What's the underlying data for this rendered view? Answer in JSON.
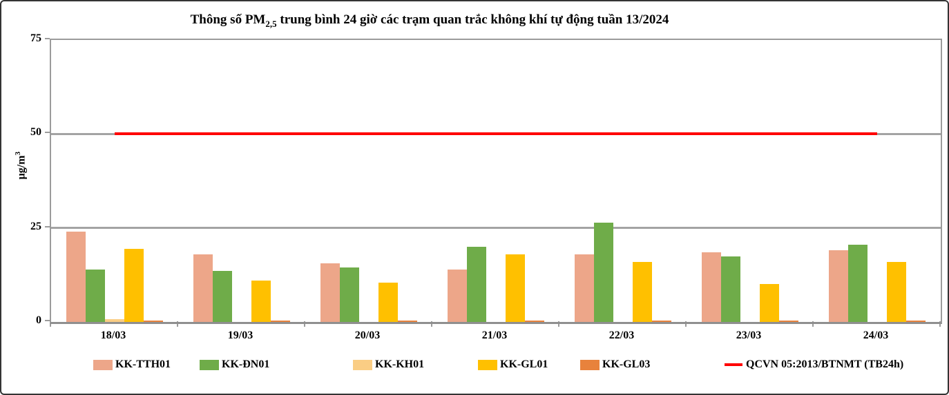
{
  "title": {
    "prefix": "Thông số PM",
    "subscript": "2,5",
    "suffix": " trung bình 24 giờ các trạm quan trắc không khí tự động tuần 13/2024"
  },
  "y_axis": {
    "label_prefix": "µg/m",
    "label_sup": "3"
  },
  "chart_data": {
    "type": "bar",
    "title": "Thông số PM2,5 trung bình 24 giờ các trạm quan trắc không khí tự động tuần 13/2024",
    "xlabel": "",
    "ylabel": "µg/m3",
    "ylim": [
      0,
      75
    ],
    "yticks": [
      0,
      25,
      50,
      75
    ],
    "grid": true,
    "legend_position": "bottom",
    "categories": [
      "18/03",
      "19/03",
      "20/03",
      "21/03",
      "22/03",
      "23/03",
      "24/03"
    ],
    "series": [
      {
        "name": "KK-TTH01",
        "color": "#eda689",
        "values": [
          24,
          18,
          15.5,
          14,
          18,
          18.5,
          19
        ]
      },
      {
        "name": "KK-ĐN01",
        "color": "#6fac49",
        "values": [
          14,
          13.5,
          14.5,
          20,
          26.5,
          17.5,
          20.5
        ]
      },
      {
        "name": "KK-KH01",
        "color": "#facd84",
        "values": [
          0.7,
          0,
          0,
          0,
          0,
          0,
          0
        ]
      },
      {
        "name": "KK-GL01",
        "color": "#ffc000",
        "values": [
          19.5,
          11,
          10.5,
          18,
          16,
          10,
          16
        ]
      },
      {
        "name": "KK-GL03",
        "color": "#e8823c",
        "values": [
          0.3,
          0.3,
          0.3,
          0.3,
          0.3,
          0.3,
          0.3
        ]
      }
    ],
    "threshold": {
      "name": "QCVN 05:2013/BTNMT (TB24h)",
      "color": "#ff0000",
      "value": 50,
      "span": "from first category center to last category center"
    }
  }
}
